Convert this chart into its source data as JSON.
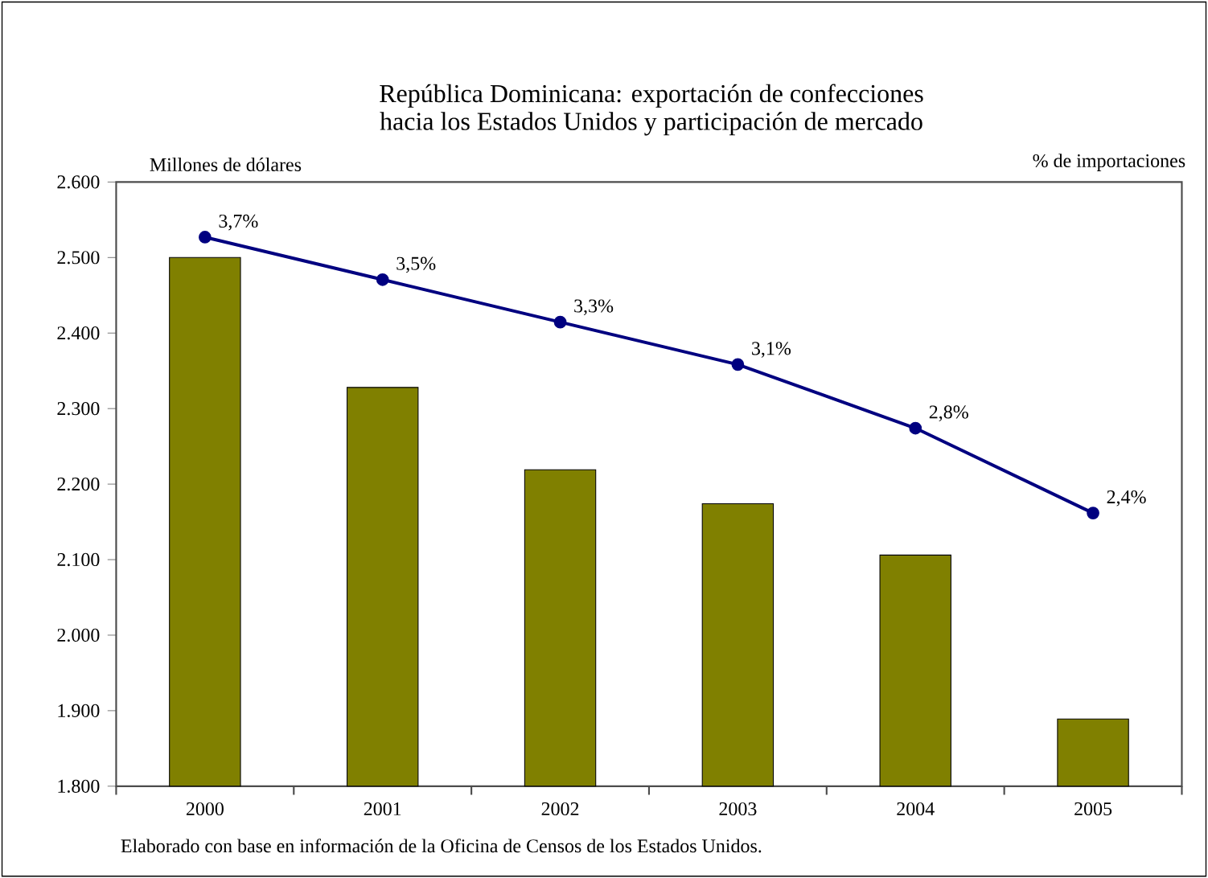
{
  "chart_data": {
    "type": "bar",
    "title": "República Dominicana: exportación de confecciones\nhacia los Estados Unidos y participación de mercado",
    "ylabel": "Millones de dólares",
    "y2label": "% de importaciones",
    "categories": [
      "2000",
      "2001",
      "2002",
      "2003",
      "2004",
      "2005"
    ],
    "series": [
      {
        "color": "#808000",
        "values": [
          2500,
          2328,
          2219,
          2174,
          2106,
          1889
        ]
      },
      {
        "type": "line",
        "axis": "y2",
        "color": "#000080",
        "marker": "circle",
        "values": [
          3.7,
          3.5,
          3.3,
          3.1,
          2.8,
          2.4
        ],
        "value_labels": [
          "3,7%",
          "3,5%",
          "3,3%",
          "3,1%",
          "2,8%",
          "2,4%"
        ]
      }
    ],
    "ylim": [
      1800,
      2600
    ],
    "yticks": [
      {
        "value": 1800,
        "label": "1.800"
      },
      {
        "value": 1900,
        "label": "1.900"
      },
      {
        "value": 2000,
        "label": "2.000"
      },
      {
        "value": 2100,
        "label": "2.100"
      },
      {
        "value": 2200,
        "label": "2.200"
      },
      {
        "value": 2300,
        "label": "2.300"
      },
      {
        "value": 2400,
        "label": "2.400"
      },
      {
        "value": 2500,
        "label": "2.500"
      },
      {
        "value": 2600,
        "label": "2.600"
      }
    ],
    "annotations": [
      "Elaborado con base en información de la Oficina de Censos de los Estados Unidos."
    ]
  }
}
